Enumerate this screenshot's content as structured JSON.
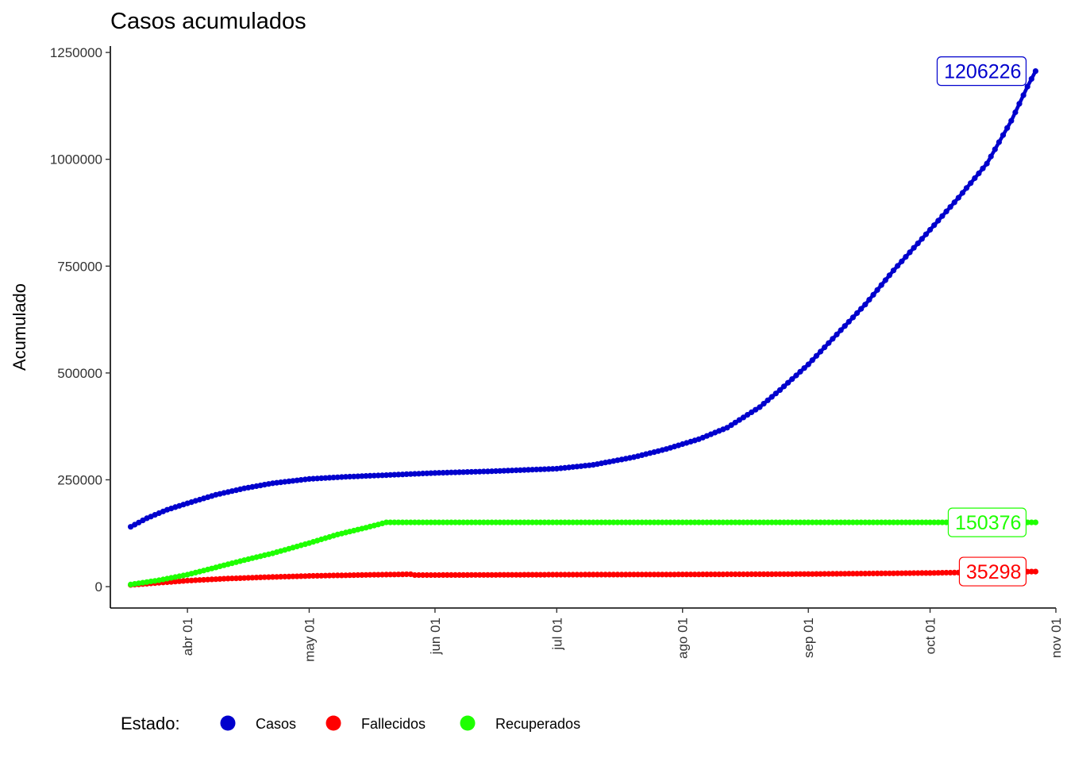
{
  "chart_data": {
    "type": "line",
    "title": "Casos acumulados",
    "xlabel": "",
    "ylabel": "Acumulado",
    "x_range": [
      "2020-03-13",
      "2020-11-01"
    ],
    "ylim": [
      -50000,
      1265000
    ],
    "y_ticks": [
      {
        "value": 0,
        "label": "0"
      },
      {
        "value": 250000,
        "label": "250000"
      },
      {
        "value": 500000,
        "label": "500000"
      },
      {
        "value": 750000,
        "label": "750000"
      },
      {
        "value": 1000000,
        "label": "1000000"
      },
      {
        "value": 1250000,
        "label": "1250000"
      }
    ],
    "x_ticks": [
      {
        "date": "2020-04-01",
        "label": "abr 01"
      },
      {
        "date": "2020-05-01",
        "label": "may 01"
      },
      {
        "date": "2020-06-01",
        "label": "jun 01"
      },
      {
        "date": "2020-07-01",
        "label": "jul 01"
      },
      {
        "date": "2020-08-01",
        "label": "ago 01"
      },
      {
        "date": "2020-09-01",
        "label": "sep 01"
      },
      {
        "date": "2020-10-01",
        "label": "oct 01"
      },
      {
        "date": "2020-11-01",
        "label": "nov 01"
      }
    ],
    "grid": false,
    "legend": {
      "title": "Estado:",
      "position": "bottom"
    },
    "series": [
      {
        "name": "Casos",
        "color": "#0000CD",
        "end_label": "1206226",
        "points": [
          [
            "2020-03-18",
            140000
          ],
          [
            "2020-03-22",
            160000
          ],
          [
            "2020-03-27",
            180000
          ],
          [
            "2020-04-01",
            195000
          ],
          [
            "2020-04-08",
            215000
          ],
          [
            "2020-04-15",
            230000
          ],
          [
            "2020-04-22",
            242000
          ],
          [
            "2020-05-01",
            252000
          ],
          [
            "2020-05-10",
            257000
          ],
          [
            "2020-05-20",
            261000
          ],
          [
            "2020-06-01",
            266000
          ],
          [
            "2020-06-15",
            270000
          ],
          [
            "2020-07-01",
            276000
          ],
          [
            "2020-07-10",
            285000
          ],
          [
            "2020-07-20",
            303000
          ],
          [
            "2020-07-28",
            322000
          ],
          [
            "2020-08-05",
            345000
          ],
          [
            "2020-08-12",
            372000
          ],
          [
            "2020-08-20",
            420000
          ],
          [
            "2020-08-25",
            460000
          ],
          [
            "2020-09-01",
            520000
          ],
          [
            "2020-09-08",
            590000
          ],
          [
            "2020-09-15",
            660000
          ],
          [
            "2020-09-22",
            740000
          ],
          [
            "2020-10-01",
            835000
          ],
          [
            "2020-10-08",
            910000
          ],
          [
            "2020-10-15",
            990000
          ],
          [
            "2020-10-21",
            1090000
          ],
          [
            "2020-10-25",
            1170000
          ],
          [
            "2020-10-27",
            1206226
          ]
        ]
      },
      {
        "name": "Fallecidos",
        "color": "#FF0000",
        "end_label": "35298",
        "points": [
          [
            "2020-03-18",
            4000
          ],
          [
            "2020-03-25",
            9000
          ],
          [
            "2020-04-01",
            14000
          ],
          [
            "2020-04-10",
            18500
          ],
          [
            "2020-04-20",
            22000
          ],
          [
            "2020-05-01",
            25000
          ],
          [
            "2020-05-15",
            27500
          ],
          [
            "2020-05-26",
            29000
          ],
          [
            "2020-05-27",
            27000
          ],
          [
            "2020-06-15",
            27500
          ],
          [
            "2020-07-01",
            28000
          ],
          [
            "2020-08-01",
            28500
          ],
          [
            "2020-09-01",
            29500
          ],
          [
            "2020-10-01",
            32000
          ],
          [
            "2020-10-15",
            34000
          ],
          [
            "2020-10-27",
            35298
          ]
        ]
      },
      {
        "name": "Recuperados",
        "color": "#1EFF00",
        "end_label": "150376",
        "points": [
          [
            "2020-03-18",
            5000
          ],
          [
            "2020-03-25",
            15000
          ],
          [
            "2020-04-01",
            28000
          ],
          [
            "2020-04-08",
            45000
          ],
          [
            "2020-04-15",
            62000
          ],
          [
            "2020-04-22",
            78000
          ],
          [
            "2020-05-01",
            102000
          ],
          [
            "2020-05-08",
            122000
          ],
          [
            "2020-05-15",
            138000
          ],
          [
            "2020-05-20",
            150376
          ],
          [
            "2020-06-15",
            150376
          ],
          [
            "2020-07-15",
            150376
          ],
          [
            "2020-08-15",
            150376
          ],
          [
            "2020-09-15",
            150376
          ],
          [
            "2020-10-15",
            150376
          ],
          [
            "2020-10-27",
            150376
          ]
        ]
      }
    ]
  }
}
